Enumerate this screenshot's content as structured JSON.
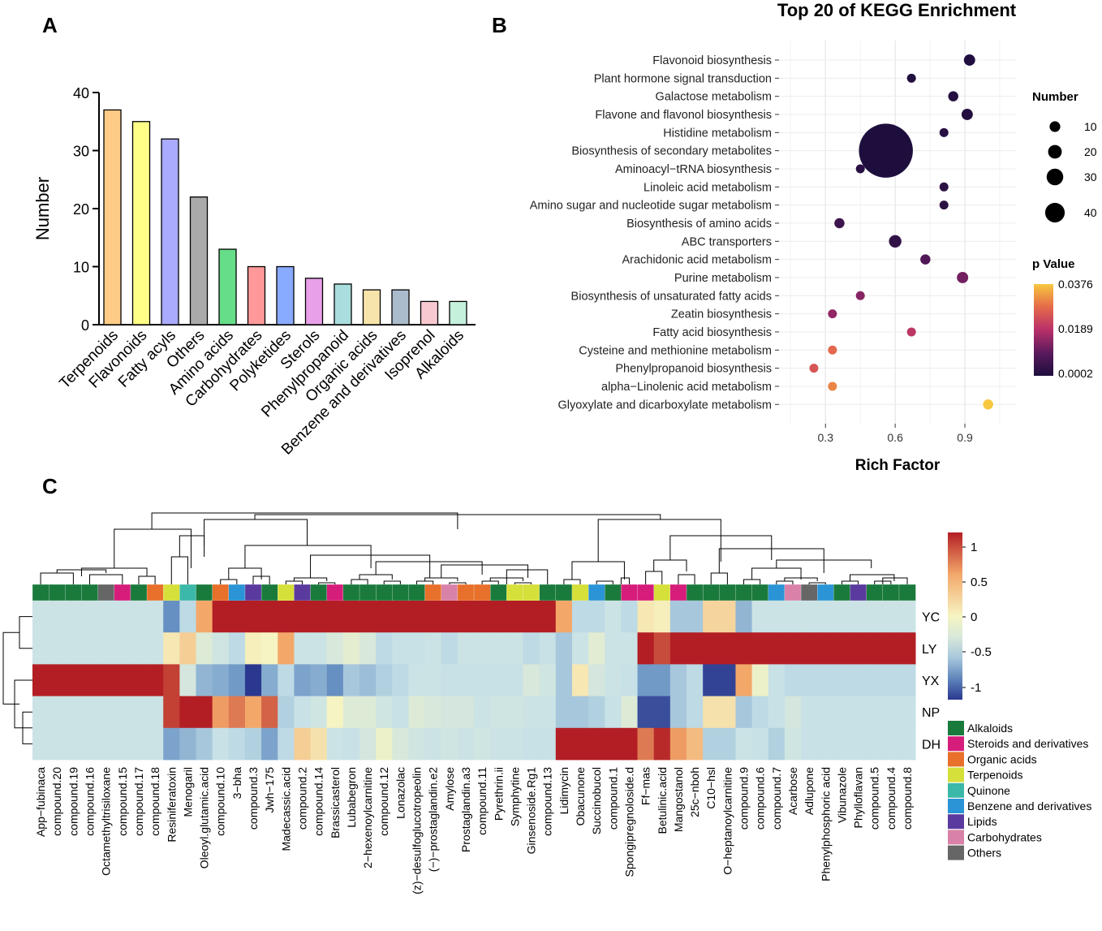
{
  "chart_data": [
    {
      "panel": "A",
      "type": "bar",
      "ylabel": "Number",
      "xlabel": "",
      "ylim": [
        0,
        40
      ],
      "yticks": [
        0,
        10,
        20,
        30,
        40
      ],
      "categories": [
        "Terpenoids",
        "Flavonoids",
        "Fatty acyls",
        "Others",
        "Amino acids",
        "Carbohydrates",
        "Polyketides",
        "Sterols",
        "Phenylpropanoid",
        "Organic acids",
        "Benzene and derivatives",
        "Isoprenol",
        "Alkaloids"
      ],
      "values": [
        37,
        35,
        32,
        22,
        13,
        10,
        10,
        8,
        7,
        6,
        6,
        4,
        4
      ],
      "colors": [
        "#ffcc88",
        "#ffff88",
        "#aaaaff",
        "#aaaaaa",
        "#66dd88",
        "#ff9999",
        "#88aaff",
        "#e8a0e8",
        "#aadddd",
        "#f6e4aa",
        "#aabbcc",
        "#f8c8d0",
        "#c4f0dc"
      ]
    },
    {
      "panel": "B",
      "type": "scatter",
      "title": "Top 20 of KEGG Enrichment",
      "xlabel": "Rich Factor",
      "xlim": [
        0.1,
        1.12
      ],
      "xticks": [
        0.3,
        0.6,
        0.9
      ],
      "xtick_labels": [
        "0.3",
        "0.6",
        "0.9"
      ],
      "pathways": [
        "Flavonoid biosynthesis",
        "Plant hormone signal transduction",
        "Galactose metabolism",
        "Flavone and flavonol biosynthesis",
        "Histidine metabolism",
        "Biosynthesis of secondary metabolites",
        "Aminoacyl−tRNA biosynthesis",
        "Linoleic acid metabolism",
        "Amino sugar and nucleotide sugar metabolism",
        "Biosynthesis of amino acids",
        "ABC transporters",
        "Arachidonic acid metabolism ",
        "Purine metabolism",
        "Biosynthesis of unsaturated fatty acids",
        "Zeatin biosynthesis",
        "Fatty acid biosynthesis",
        "Cysteine and methionine metabolism",
        "Phenylpropanoid biosynthesis",
        "alpha−Linolenic acid metabolism",
        "Glyoxylate and dicarboxylate metabolism"
      ],
      "rich_factor": [
        0.92,
        0.67,
        0.85,
        0.91,
        0.81,
        0.56,
        0.45,
        0.81,
        0.81,
        0.36,
        0.6,
        0.73,
        0.89,
        0.45,
        0.33,
        0.67,
        0.33,
        0.25,
        0.33,
        1.0
      ],
      "number": [
        4,
        2,
        3,
        4,
        2,
        40,
        2,
        2,
        2,
        3,
        5,
        3,
        4,
        2,
        2,
        2,
        2,
        2,
        2,
        3
      ],
      "p_value": [
        0.0004,
        0.0006,
        0.0015,
        0.0008,
        0.0018,
        0.0002,
        0.002,
        0.0022,
        0.0022,
        0.005,
        0.003,
        0.008,
        0.012,
        0.014,
        0.015,
        0.02,
        0.028,
        0.025,
        0.031,
        0.0376
      ],
      "size_legend_title": "Number",
      "size_legend": [
        10,
        20,
        30,
        40
      ],
      "color_legend_title": "p Value",
      "color_legend_labels": [
        "0.0376",
        "0.0189",
        "0.0002"
      ],
      "colors": {
        "low": "#1e0e3e",
        "mid1": "#5a1a5c",
        "mid2": "#b8306a",
        "mid3": "#e56a4a",
        "high": "#f7c73e"
      }
    },
    {
      "panel": "C",
      "type": "heatmap",
      "rows": [
        "YC",
        "LY",
        "YX",
        "NP",
        "DH"
      ],
      "columns": [
        "App−fubinaca",
        "compound.20",
        "compound.19",
        "compound.16",
        "Octamethyltrisiloxane",
        "compound.15",
        "compound.17",
        "compound.18",
        "Resiniferatoxin",
        "Menogaril",
        "Oleoyl.glutamic.acid",
        "compound.10",
        "3−bha",
        "compound.3",
        "Jwh−175",
        "Madecassic.acid",
        "compound.2",
        "compound.14",
        "Brassicasterol",
        "Lubabegron",
        "2−hexenoylcarnitine",
        "compound.12",
        "Lonazolac",
        "(z)−desulfoglucotropeolin",
        "(−)−prostaglandin.e2",
        "Amylose",
        "Prostaglandin.a3",
        "compound.11",
        "Pyrethrin.ii",
        "Symphytine",
        "Ginsenoside.Rg1",
        "compound.13",
        "Lidimycin",
        "Obacunone",
        "Succinobucol",
        "compound.1",
        "Spongipregnoloside.d",
        "Ff−mas",
        "Betulinic.acid",
        "Mangostanol",
        "25c−nboh",
        "C10−hsl",
        "O−heptanoylcarnitine",
        "compound.9",
        "compound.6",
        "compound.7",
        "Acarbose",
        "Adlupone",
        "Phenylphosphoric acid",
        "Vibunazole",
        "Phylloflavan",
        "compound.5",
        "compound.4",
        "compound.8"
      ],
      "column_classes": [
        "Alkaloids",
        "Alkaloids",
        "Alkaloids",
        "Alkaloids",
        "Others",
        "Steroids and derivatives",
        "Alkaloids",
        "Organic acids",
        "Terpenoids",
        "Quinone",
        "Alkaloids",
        "Organic acids",
        "Benzene and derivatives",
        "Lipids",
        "Alkaloids",
        "Terpenoids",
        "Lipids",
        "Alkaloids",
        "Steroids and derivatives",
        "Alkaloids",
        "Alkaloids",
        "Alkaloids",
        "Alkaloids",
        "Alkaloids",
        "Organic acids",
        "Carbohydrates",
        "Organic acids",
        "Organic acids",
        "Alkaloids",
        "Terpenoids",
        "Terpenoids",
        "Alkaloids",
        "Alkaloids",
        "Terpenoids",
        "Benzene and derivatives",
        "Alkaloids",
        "Steroids and derivatives",
        "Steroids and derivatives",
        "Terpenoids",
        "Steroids and derivatives",
        "Alkaloids",
        "Alkaloids",
        "Alkaloids",
        "Alkaloids",
        "Alkaloids",
        "Benzene and derivatives",
        "Carbohydrates",
        "Others",
        "Benzene and derivatives",
        "Alkaloids",
        "Lipids",
        "Alkaloids",
        "Alkaloids",
        "Alkaloids"
      ],
      "values": [
        [
          -0.5,
          -0.5,
          -0.5,
          -0.5,
          -0.5,
          -0.5,
          -0.5,
          -0.5,
          -1.0,
          -0.6,
          0.6,
          1.2,
          1.2,
          1.2,
          1.2,
          1.2,
          1.2,
          1.2,
          1.2,
          1.2,
          1.2,
          1.2,
          1.2,
          1.2,
          1.2,
          1.2,
          1.2,
          1.2,
          1.2,
          1.2,
          1.2,
          1.2,
          0.6,
          -0.6,
          -0.6,
          -0.5,
          -0.6,
          0.1,
          0.05,
          -0.7,
          -0.7,
          0.25,
          0.25,
          -0.8,
          -0.5,
          -0.5,
          -0.5,
          -0.5,
          -0.5,
          -0.5,
          -0.5,
          -0.5,
          -0.5,
          -0.5
        ],
        [
          -0.5,
          -0.5,
          -0.5,
          -0.5,
          -0.5,
          -0.5,
          -0.5,
          -0.5,
          0.1,
          0.3,
          -0.3,
          -0.45,
          -0.6,
          0.05,
          0.0,
          0.6,
          -0.5,
          -0.5,
          -0.35,
          -0.2,
          -0.35,
          -0.6,
          -0.55,
          -0.55,
          -0.5,
          -0.6,
          -0.5,
          -0.5,
          -0.5,
          -0.5,
          -0.6,
          -0.55,
          -0.7,
          -0.5,
          -0.25,
          -0.5,
          -0.5,
          1.2,
          1.0,
          1.2,
          1.2,
          1.2,
          1.2,
          1.2,
          1.2,
          1.2,
          1.2,
          1.2,
          1.2,
          1.2,
          1.2,
          1.2,
          1.2,
          1.2
        ],
        [
          1.2,
          1.2,
          1.2,
          1.2,
          1.2,
          1.2,
          1.2,
          1.2,
          1.05,
          -0.4,
          -0.8,
          -0.85,
          -0.95,
          -1.4,
          -0.85,
          -0.6,
          -0.9,
          -0.85,
          -1.0,
          -0.7,
          -0.75,
          -0.65,
          -0.6,
          -0.5,
          -0.5,
          -0.55,
          -0.55,
          -0.55,
          -0.55,
          -0.55,
          -0.35,
          -0.45,
          -0.7,
          0.1,
          -0.4,
          -0.5,
          -0.55,
          -0.95,
          -0.95,
          -0.7,
          -0.6,
          -1.35,
          -1.35,
          0.6,
          -0.1,
          -0.55,
          -0.6,
          -0.6,
          -0.6,
          -0.6,
          -0.6,
          -0.6,
          -0.6,
          -0.6
        ],
        [
          -0.5,
          -0.5,
          -0.5,
          -0.5,
          -0.5,
          -0.5,
          -0.5,
          -0.5,
          1.05,
          1.2,
          1.2,
          0.65,
          0.8,
          0.6,
          0.9,
          -0.65,
          -0.55,
          -0.45,
          0.0,
          -0.3,
          -0.3,
          -0.45,
          -0.55,
          -0.3,
          -0.35,
          -0.4,
          -0.4,
          -0.5,
          -0.45,
          -0.45,
          -0.5,
          -0.5,
          -0.7,
          -0.7,
          -0.65,
          -0.55,
          -0.3,
          -1.3,
          -1.3,
          -0.7,
          -0.6,
          0.15,
          0.15,
          -0.7,
          -0.6,
          -0.55,
          -0.4,
          -0.55,
          -0.55,
          -0.55,
          -0.55,
          -0.55,
          -0.55,
          -0.55
        ],
        [
          -0.5,
          -0.5,
          -0.5,
          -0.5,
          -0.5,
          -0.5,
          -0.5,
          -0.5,
          -0.9,
          -0.8,
          -0.7,
          -0.55,
          -0.6,
          -0.65,
          -0.9,
          -0.6,
          0.3,
          0.15,
          -0.5,
          -0.55,
          -0.4,
          -0.1,
          -0.35,
          -0.45,
          -0.5,
          -0.45,
          -0.5,
          -0.45,
          -0.5,
          -0.5,
          -0.55,
          -0.55,
          1.2,
          1.2,
          1.2,
          1.2,
          1.2,
          0.8,
          1.15,
          0.65,
          0.45,
          -0.65,
          -0.65,
          -0.5,
          -0.55,
          -0.65,
          -0.45,
          -0.55,
          -0.55,
          -0.55,
          -0.55,
          -0.55,
          -0.55,
          -0.55
        ]
      ],
      "color_scale_labels": [
        "1",
        "0.5",
        "0",
        "-0.5",
        "-1"
      ],
      "color_scale": {
        "high": "#b31e24",
        "mid": "#f6f4c2",
        "low": "#2b3890"
      },
      "class_legend": [
        {
          "label": "Alkaloids",
          "color": "#1a7a3c"
        },
        {
          "label": "Steroids and derivatives",
          "color": "#d61d7b"
        },
        {
          "label": "Organic acids",
          "color": "#e8702a"
        },
        {
          "label": "Terpenoids",
          "color": "#d6e03a"
        },
        {
          "label": "Quinone",
          "color": "#3cb8a8"
        },
        {
          "label": "Benzene and derivatives",
          "color": "#2a94d6"
        },
        {
          "label": "Lipids",
          "color": "#5a3a9e"
        },
        {
          "label": "Carbohydrates",
          "color": "#d982a8"
        },
        {
          "label": "Others",
          "color": "#666666"
        }
      ]
    }
  ],
  "panels": {
    "a": "A",
    "b": "B",
    "c": "C"
  }
}
